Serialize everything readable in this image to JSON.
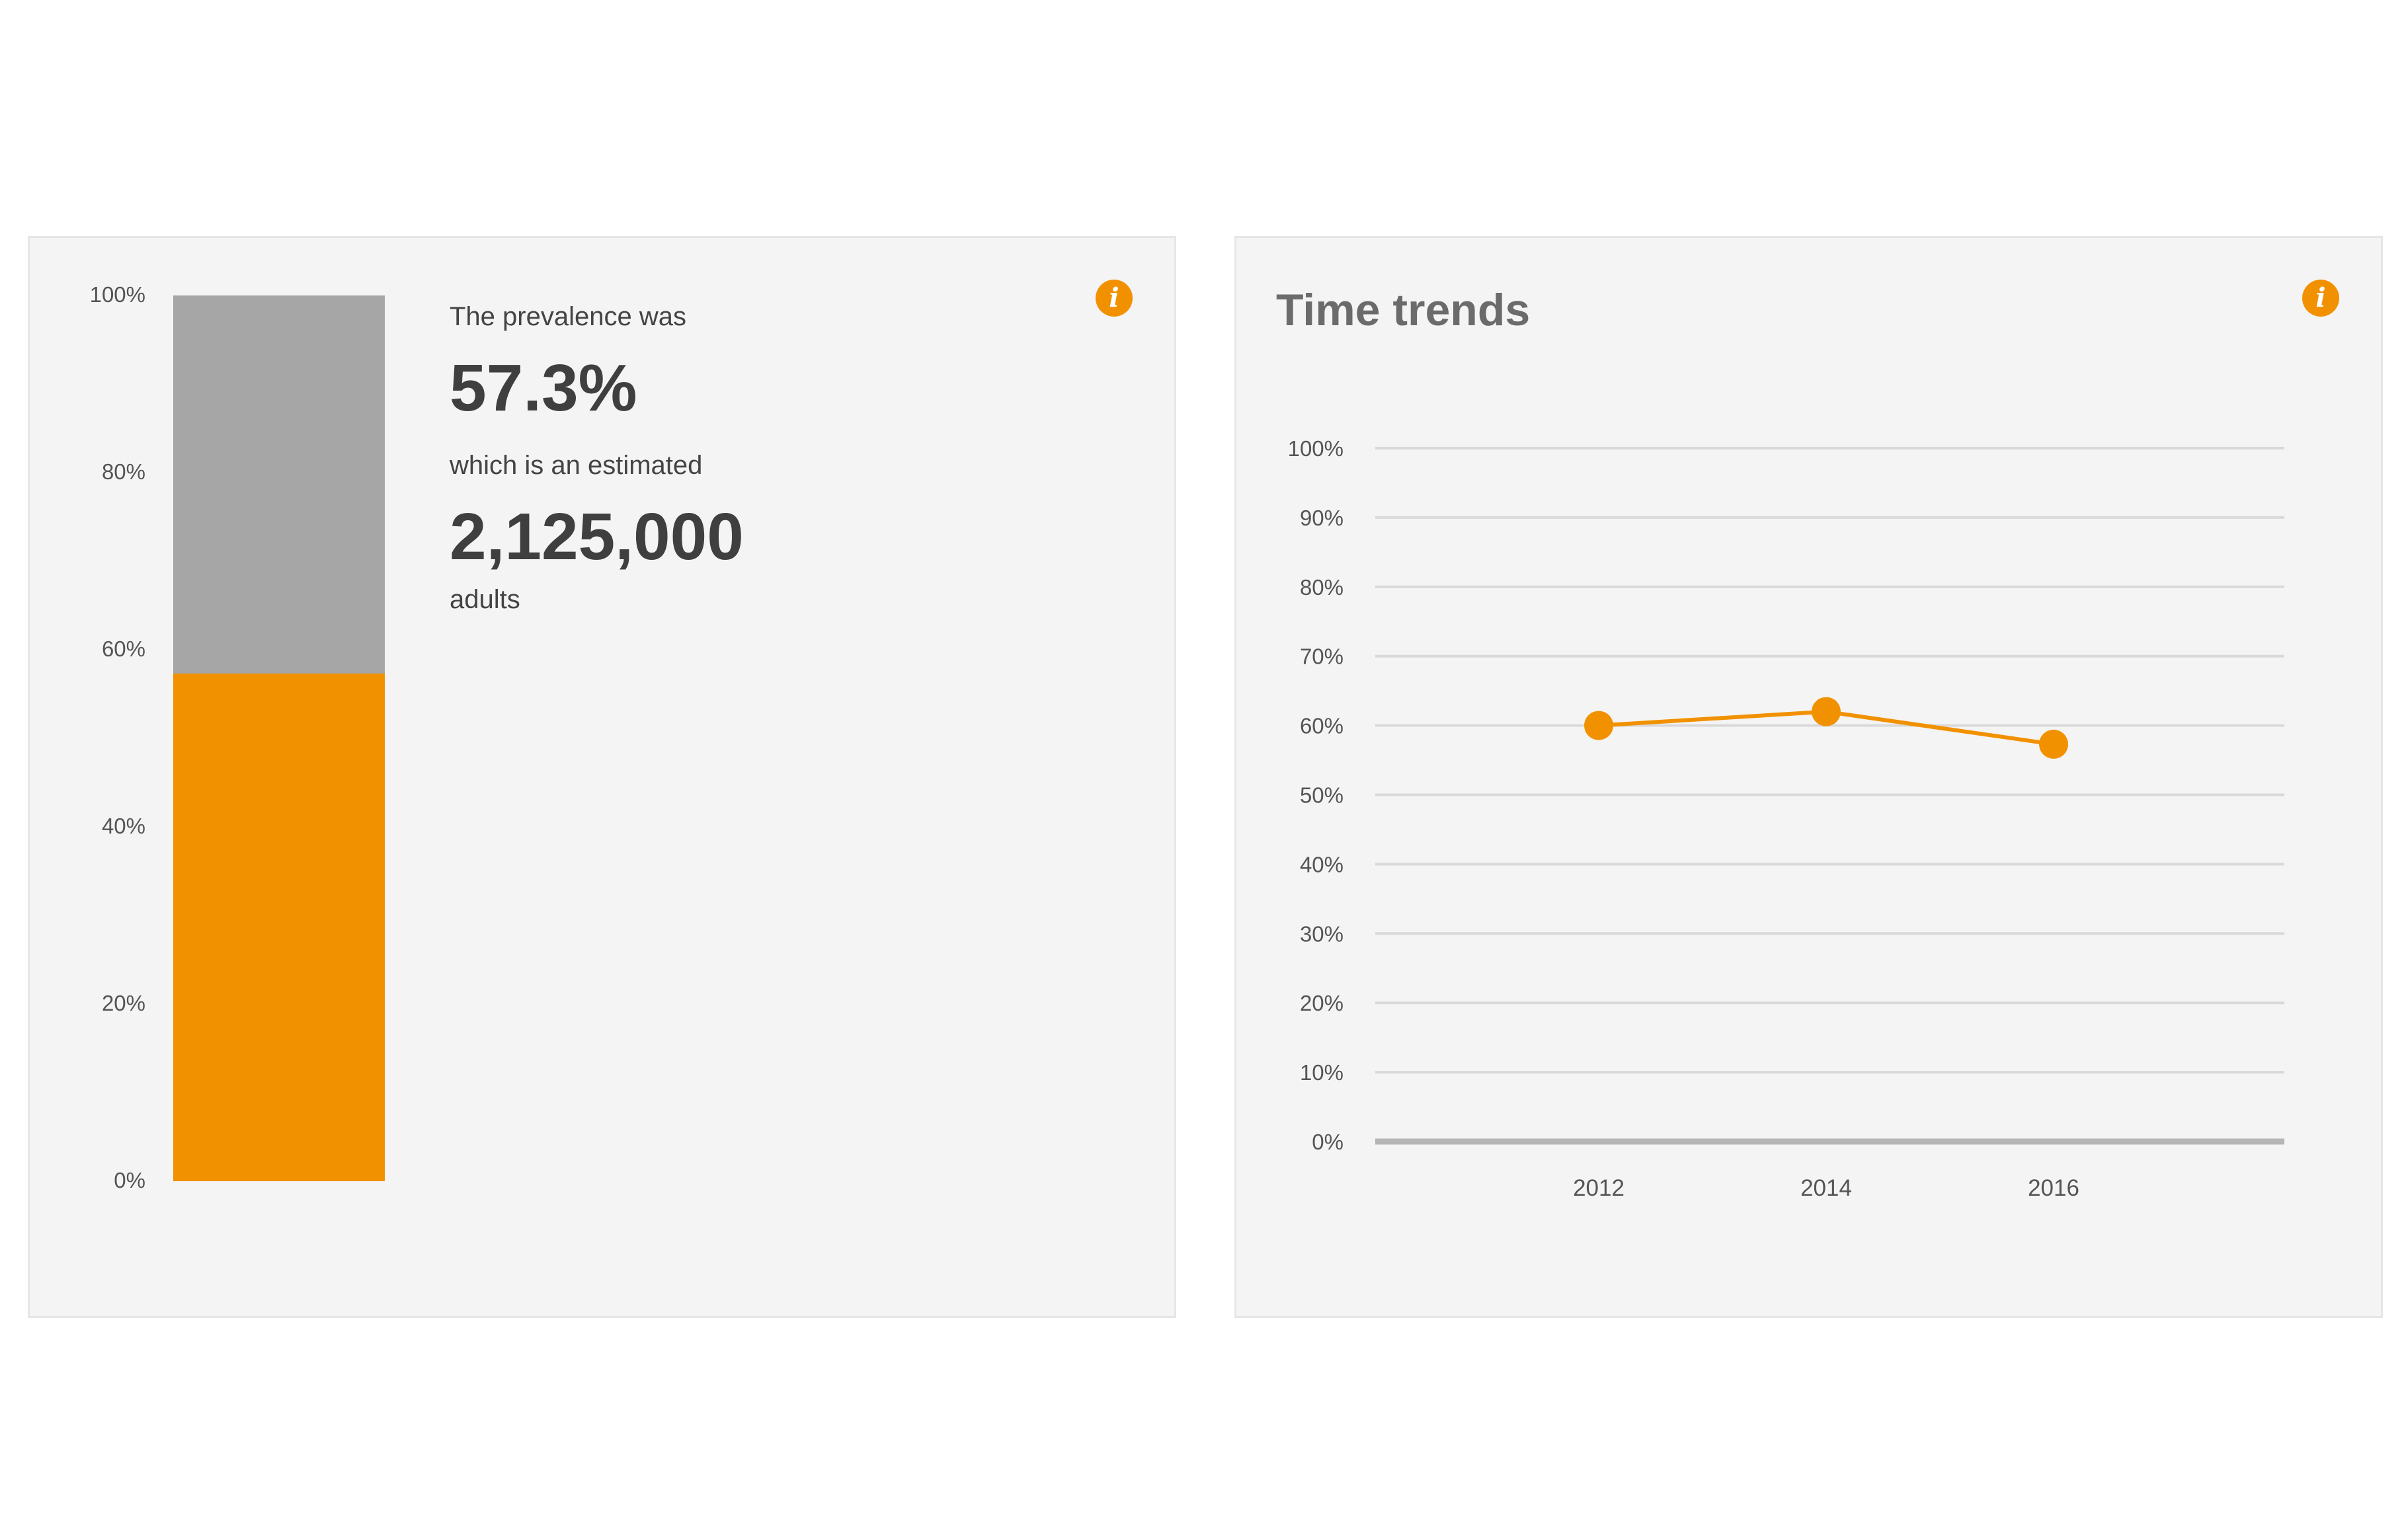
{
  "colors": {
    "accent": "#f29100",
    "remainder": "#a6a6a6",
    "panel_bg": "#f4f4f4",
    "grid": "#d9d9d9",
    "axis": "#b5b5b5",
    "text": "#444444",
    "title": "#6b6b6b"
  },
  "prevalence_panel": {
    "info_icon": "info-icon",
    "info_glyph": "i",
    "intro_text": "The prevalence was",
    "percent_text": "57.3%",
    "estimate_text": "which is an estimated",
    "count_text": "2,125,000",
    "unit_text": "adults"
  },
  "trends_panel": {
    "title": "Time trends",
    "info_icon": "info-icon",
    "info_glyph": "i"
  },
  "chart_data": [
    {
      "type": "bar",
      "stacked": true,
      "categories": [
        ""
      ],
      "series": [
        {
          "values": [
            57.3
          ],
          "color": "#f29100"
        },
        {
          "values": [
            42.7
          ],
          "color": "#a6a6a6"
        }
      ],
      "ylim": [
        0,
        100
      ],
      "yticks": [
        "0%",
        "20%",
        "40%",
        "60%",
        "80%",
        "100%"
      ],
      "grid": false,
      "legend": "none"
    },
    {
      "type": "line",
      "title": "Time trends",
      "x": [
        "2012",
        "2014",
        "2016"
      ],
      "series": [
        {
          "values": [
            60,
            62,
            57.3
          ],
          "color": "#f29100"
        }
      ],
      "ylim": [
        0,
        100
      ],
      "yticks": [
        "0%",
        "10%",
        "20%",
        "30%",
        "40%",
        "50%",
        "60%",
        "70%",
        "80%",
        "90%",
        "100%"
      ],
      "grid": true,
      "legend": "none"
    }
  ]
}
